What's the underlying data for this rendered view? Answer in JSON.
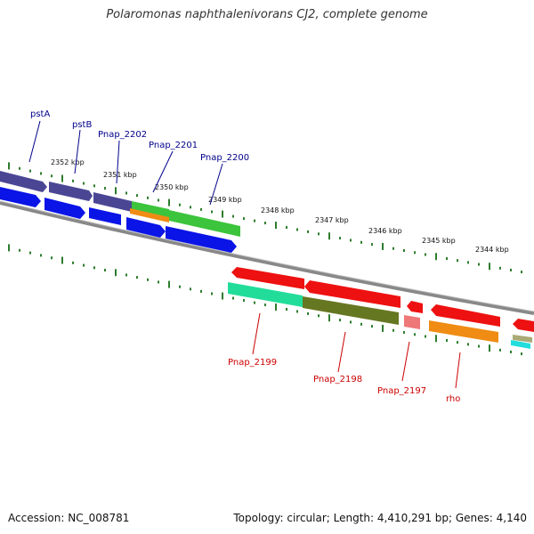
{
  "map": {
    "title": "Polaromonas naphthalenivorans CJ2, complete genome",
    "accession": "Accession: NC_008781",
    "summary": "Topology: circular; Length: 4,410,291 bp; Genes: 4,140"
  },
  "ruler": {
    "labels": [
      "2352 kbp",
      "2351 kbp",
      "2350 kbp",
      "2349 kbp",
      "2348 kbp",
      "2347 kbp",
      "2346 kbp",
      "2345 kbp",
      "2344 kbp"
    ]
  },
  "genes_forward": {
    "labels": [
      "pstA",
      "pstB",
      "Pnap_2202",
      "Pnap_2201",
      "Pnap_2200"
    ],
    "color": "#00008b"
  },
  "genes_reverse": {
    "labels": [
      "Pnap_2199",
      "Pnap_2198",
      "Pnap_2197",
      "rho"
    ],
    "color": "#cc0000"
  },
  "colors": {
    "backbone": "#888888",
    "tick": "#2e7d2e",
    "purple": "#4b4694",
    "blue": "#0a14e6",
    "green": "#3cc43c",
    "orange": "#f08c14",
    "red": "#ee1111",
    "teal": "#22dd99",
    "olive": "#667722",
    "pink": "#ee7777",
    "cyan": "#22dddd",
    "tan": "#aaaa77"
  }
}
